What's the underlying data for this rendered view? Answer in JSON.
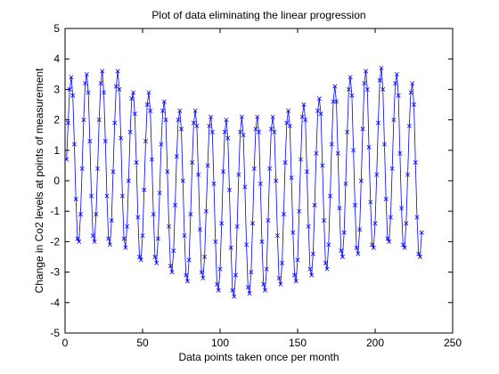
{
  "chart_data": {
    "type": "line",
    "title": "Plot of data eliminating the linear progression",
    "xlabel": "Data points taken once per month",
    "ylabel": "Change in Co2 levels at points of measurement",
    "xlim": [
      0,
      250
    ],
    "ylim": [
      -5,
      5
    ],
    "x_ticks": [
      0,
      50,
      100,
      150,
      200,
      250
    ],
    "y_ticks": [
      -5,
      -4,
      -3,
      -2,
      -1,
      0,
      1,
      2,
      3,
      4,
      5
    ],
    "grid": false,
    "series": [
      {
        "color": "#0000ff",
        "marker": "x",
        "x_start": 1,
        "x_step": 1,
        "values": [
          0.7,
          1.9,
          3.0,
          3.4,
          2.8,
          1.2,
          -0.6,
          -1.9,
          -2.0,
          -1.1,
          0.4,
          2.0,
          3.2,
          3.5,
          2.9,
          1.3,
          -0.5,
          -1.8,
          -2.0,
          -1.1,
          0.4,
          2.0,
          3.2,
          3.6,
          2.9,
          1.3,
          -0.5,
          -1.9,
          -2.1,
          -1.3,
          0.3,
          1.9,
          3.1,
          3.6,
          3.0,
          1.4,
          -0.5,
          -1.9,
          -2.2,
          -1.5,
          0.0,
          1.6,
          2.7,
          2.9,
          2.2,
          0.6,
          -1.2,
          -2.5,
          -2.6,
          -1.8,
          -0.3,
          1.3,
          2.5,
          2.9,
          2.3,
          0.7,
          -1.1,
          -2.5,
          -2.7,
          -1.9,
          -0.4,
          1.2,
          2.3,
          2.6,
          2.0,
          0.3,
          -1.5,
          -2.8,
          -3.0,
          -2.3,
          -0.8,
          0.8,
          2.0,
          2.3,
          1.7,
          0.0,
          -1.8,
          -3.1,
          -3.3,
          -2.6,
          -1.1,
          0.6,
          1.9,
          2.3,
          1.8,
          0.2,
          -1.6,
          -3.0,
          -3.2,
          -2.5,
          -1.0,
          0.5,
          1.8,
          2.1,
          1.6,
          -0.1,
          -2.0,
          -3.4,
          -3.6,
          -2.9,
          -1.4,
          0.3,
          1.6,
          2.0,
          1.4,
          -0.3,
          -2.2,
          -3.6,
          -3.8,
          -3.1,
          -1.5,
          0.2,
          1.6,
          2.1,
          1.5,
          -0.2,
          -2.1,
          -3.5,
          -3.7,
          -3.0,
          -1.4,
          0.4,
          1.7,
          2.1,
          1.6,
          -0.1,
          -2.0,
          -3.4,
          -3.6,
          -2.9,
          -1.3,
          0.4,
          1.7,
          2.1,
          1.6,
          0.0,
          -1.8,
          -3.2,
          -3.4,
          -2.7,
          -1.1,
          0.6,
          1.9,
          2.3,
          1.8,
          0.1,
          -1.7,
          -3.1,
          -3.3,
          -2.6,
          -1.0,
          0.7,
          2.1,
          2.5,
          2.0,
          0.3,
          -1.5,
          -2.9,
          -3.1,
          -2.4,
          -0.8,
          0.9,
          2.3,
          2.7,
          2.2,
          0.5,
          -1.3,
          -2.7,
          -2.9,
          -2.1,
          -0.5,
          1.2,
          2.6,
          3.1,
          2.6,
          0.9,
          -0.9,
          -2.3,
          -2.5,
          -1.7,
          -0.1,
          1.6,
          3.0,
          3.4,
          2.8,
          1.0,
          -0.8,
          -2.2,
          -2.4,
          -1.6,
          0.0,
          1.7,
          3.2,
          3.6,
          3.0,
          1.1,
          -0.7,
          -2.1,
          -2.2,
          -1.4,
          0.2,
          1.9,
          3.3,
          3.7,
          3.0,
          1.2,
          -0.6,
          -1.9,
          -2.0,
          -1.2,
          0.4,
          2.0,
          3.2,
          3.5,
          2.8,
          0.9,
          -0.9,
          -2.1,
          -2.2,
          -1.4,
          0.2,
          1.8,
          2.9,
          3.2,
          2.5,
          0.6,
          -1.2,
          -2.4,
          -2.5,
          -1.7
        ]
      }
    ]
  }
}
